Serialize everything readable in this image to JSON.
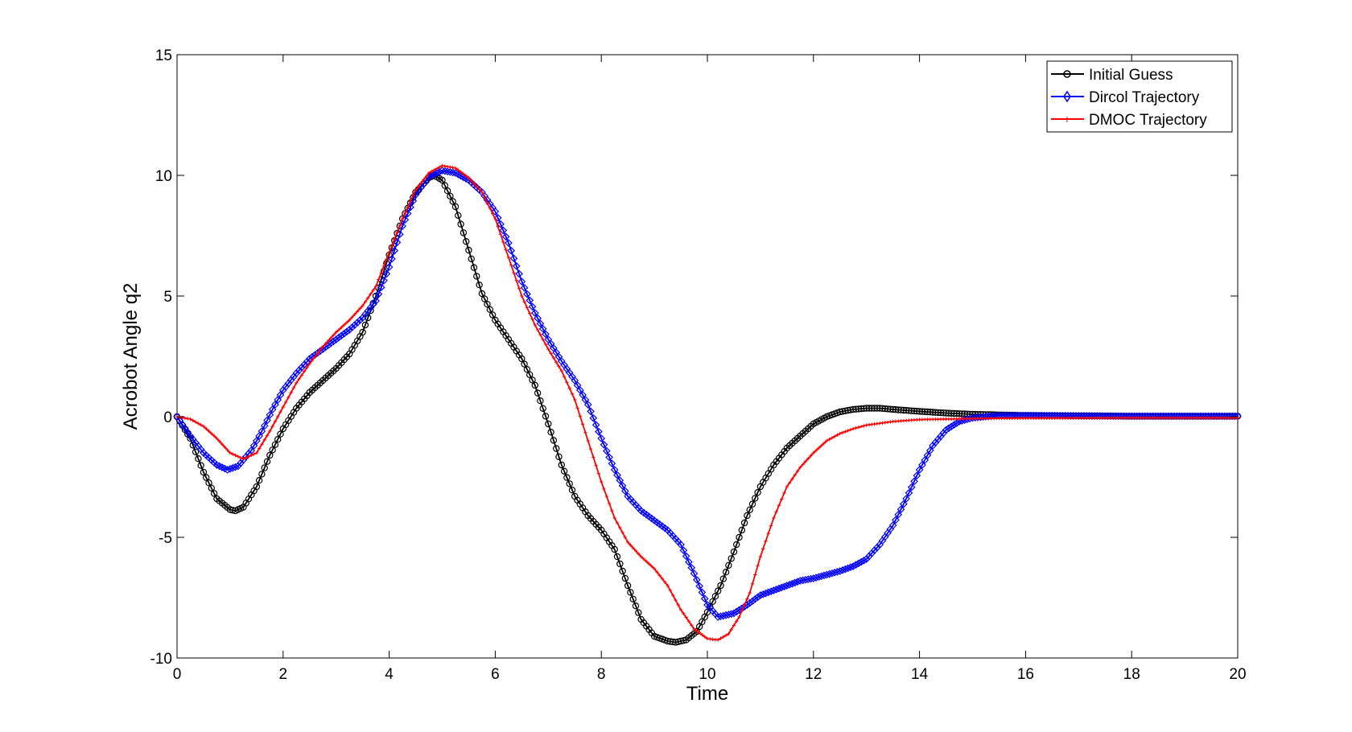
{
  "chart_data": {
    "type": "line",
    "title": "",
    "xlabel": "Time",
    "ylabel": "Acrobot Angle q2",
    "xlim": [
      0,
      20
    ],
    "ylim": [
      -10,
      15
    ],
    "xticks": [
      0,
      2,
      4,
      6,
      8,
      10,
      12,
      14,
      16,
      18,
      20
    ],
    "yticks": [
      -10,
      -5,
      0,
      5,
      10,
      15
    ],
    "grid": false,
    "legend_position": "top-right",
    "series": [
      {
        "name": "Initial Guess",
        "color": "#000000",
        "marker": "circle",
        "points": [
          [
            0,
            0
          ],
          [
            0.25,
            -0.9
          ],
          [
            0.5,
            -2.3
          ],
          [
            0.75,
            -3.4
          ],
          [
            1.0,
            -3.85
          ],
          [
            1.1,
            -3.9
          ],
          [
            1.25,
            -3.75
          ],
          [
            1.5,
            -2.9
          ],
          [
            1.75,
            -1.6
          ],
          [
            2.0,
            -0.5
          ],
          [
            2.25,
            0.35
          ],
          [
            2.5,
            1.0
          ],
          [
            2.75,
            1.5
          ],
          [
            3.0,
            2.0
          ],
          [
            3.25,
            2.6
          ],
          [
            3.5,
            3.5
          ],
          [
            3.75,
            5.0
          ],
          [
            4.0,
            6.7
          ],
          [
            4.25,
            8.2
          ],
          [
            4.5,
            9.3
          ],
          [
            4.75,
            9.9
          ],
          [
            4.85,
            10.0
          ],
          [
            5.0,
            9.8
          ],
          [
            5.25,
            8.7
          ],
          [
            5.5,
            6.9
          ],
          [
            5.75,
            5.1
          ],
          [
            6.0,
            4.0
          ],
          [
            6.25,
            3.2
          ],
          [
            6.5,
            2.4
          ],
          [
            6.75,
            1.3
          ],
          [
            7.0,
            -0.3
          ],
          [
            7.25,
            -2.0
          ],
          [
            7.5,
            -3.3
          ],
          [
            7.75,
            -4.1
          ],
          [
            8.0,
            -4.7
          ],
          [
            8.25,
            -5.5
          ],
          [
            8.5,
            -7.0
          ],
          [
            8.75,
            -8.4
          ],
          [
            9.0,
            -9.1
          ],
          [
            9.25,
            -9.3
          ],
          [
            9.4,
            -9.35
          ],
          [
            9.6,
            -9.25
          ],
          [
            9.8,
            -8.9
          ],
          [
            10.0,
            -8.1
          ],
          [
            10.25,
            -7.0
          ],
          [
            10.5,
            -5.6
          ],
          [
            10.75,
            -4.1
          ],
          [
            11.0,
            -2.9
          ],
          [
            11.25,
            -2.0
          ],
          [
            11.5,
            -1.3
          ],
          [
            11.75,
            -0.8
          ],
          [
            12.0,
            -0.3
          ],
          [
            12.25,
            0.0
          ],
          [
            12.5,
            0.2
          ],
          [
            12.75,
            0.3
          ],
          [
            13.0,
            0.35
          ],
          [
            13.25,
            0.35
          ],
          [
            13.5,
            0.3
          ],
          [
            14.0,
            0.22
          ],
          [
            14.5,
            0.15
          ],
          [
            15.0,
            0.1
          ],
          [
            16.0,
            0.05
          ],
          [
            18.0,
            0.02
          ],
          [
            20.0,
            0.02
          ]
        ]
      },
      {
        "name": "Dircol Trajectory",
        "color": "#0000ff",
        "marker": "diamond",
        "points": [
          [
            0,
            0
          ],
          [
            0.25,
            -0.8
          ],
          [
            0.5,
            -1.5
          ],
          [
            0.75,
            -2.0
          ],
          [
            0.95,
            -2.2
          ],
          [
            1.15,
            -2.05
          ],
          [
            1.4,
            -1.4
          ],
          [
            1.6,
            -0.6
          ],
          [
            1.8,
            0.3
          ],
          [
            2.0,
            1.1
          ],
          [
            2.25,
            1.8
          ],
          [
            2.5,
            2.4
          ],
          [
            2.75,
            2.8
          ],
          [
            3.0,
            3.2
          ],
          [
            3.25,
            3.6
          ],
          [
            3.5,
            4.1
          ],
          [
            3.75,
            4.8
          ],
          [
            4.0,
            6.2
          ],
          [
            4.25,
            7.9
          ],
          [
            4.5,
            9.2
          ],
          [
            4.75,
            9.95
          ],
          [
            5.0,
            10.2
          ],
          [
            5.25,
            10.1
          ],
          [
            5.5,
            9.8
          ],
          [
            5.75,
            9.3
          ],
          [
            6.0,
            8.5
          ],
          [
            6.25,
            7.2
          ],
          [
            6.5,
            5.6
          ],
          [
            6.75,
            4.3
          ],
          [
            7.0,
            3.2
          ],
          [
            7.25,
            2.3
          ],
          [
            7.5,
            1.5
          ],
          [
            7.75,
            0.5
          ],
          [
            8.0,
            -0.9
          ],
          [
            8.25,
            -2.2
          ],
          [
            8.5,
            -3.3
          ],
          [
            8.75,
            -3.9
          ],
          [
            9.0,
            -4.3
          ],
          [
            9.25,
            -4.7
          ],
          [
            9.5,
            -5.3
          ],
          [
            9.75,
            -6.5
          ],
          [
            10.0,
            -7.8
          ],
          [
            10.2,
            -8.3
          ],
          [
            10.5,
            -8.15
          ],
          [
            10.75,
            -7.8
          ],
          [
            11.0,
            -7.4
          ],
          [
            11.25,
            -7.2
          ],
          [
            11.5,
            -7.0
          ],
          [
            11.75,
            -6.8
          ],
          [
            12.0,
            -6.7
          ],
          [
            12.25,
            -6.55
          ],
          [
            12.5,
            -6.4
          ],
          [
            12.75,
            -6.2
          ],
          [
            13.0,
            -5.9
          ],
          [
            13.25,
            -5.3
          ],
          [
            13.5,
            -4.5
          ],
          [
            13.75,
            -3.4
          ],
          [
            14.0,
            -2.2
          ],
          [
            14.25,
            -1.2
          ],
          [
            14.5,
            -0.55
          ],
          [
            14.75,
            -0.2
          ],
          [
            15.0,
            -0.05
          ],
          [
            15.5,
            0.05
          ],
          [
            16.0,
            0.05
          ],
          [
            18.0,
            0.02
          ],
          [
            20.0,
            0.02
          ]
        ]
      },
      {
        "name": "DMOC Trajectory",
        "color": "#ff0000",
        "marker": "plus",
        "points": [
          [
            0,
            0
          ],
          [
            0.25,
            -0.1
          ],
          [
            0.5,
            -0.4
          ],
          [
            0.75,
            -0.9
          ],
          [
            1.0,
            -1.5
          ],
          [
            1.25,
            -1.75
          ],
          [
            1.5,
            -1.5
          ],
          [
            1.75,
            -0.6
          ],
          [
            2.0,
            0.4
          ],
          [
            2.25,
            1.4
          ],
          [
            2.5,
            2.2
          ],
          [
            2.75,
            2.9
          ],
          [
            3.0,
            3.5
          ],
          [
            3.25,
            4.0
          ],
          [
            3.5,
            4.6
          ],
          [
            3.75,
            5.4
          ],
          [
            4.0,
            6.8
          ],
          [
            4.25,
            8.2
          ],
          [
            4.5,
            9.4
          ],
          [
            4.75,
            10.1
          ],
          [
            5.0,
            10.4
          ],
          [
            5.25,
            10.3
          ],
          [
            5.5,
            9.9
          ],
          [
            5.75,
            9.3
          ],
          [
            6.0,
            8.2
          ],
          [
            6.25,
            6.6
          ],
          [
            6.5,
            5.0
          ],
          [
            6.75,
            3.8
          ],
          [
            7.0,
            2.8
          ],
          [
            7.25,
            1.9
          ],
          [
            7.5,
            0.7
          ],
          [
            7.75,
            -1.0
          ],
          [
            8.0,
            -2.7
          ],
          [
            8.25,
            -4.2
          ],
          [
            8.5,
            -5.2
          ],
          [
            8.75,
            -5.8
          ],
          [
            9.0,
            -6.3
          ],
          [
            9.25,
            -7.0
          ],
          [
            9.5,
            -8.0
          ],
          [
            9.75,
            -8.8
          ],
          [
            10.0,
            -9.2
          ],
          [
            10.2,
            -9.25
          ],
          [
            10.4,
            -9.0
          ],
          [
            10.6,
            -8.3
          ],
          [
            10.8,
            -7.3
          ],
          [
            11.0,
            -5.8
          ],
          [
            11.25,
            -4.2
          ],
          [
            11.5,
            -2.9
          ],
          [
            11.75,
            -2.1
          ],
          [
            12.0,
            -1.5
          ],
          [
            12.25,
            -1.0
          ],
          [
            12.5,
            -0.7
          ],
          [
            12.75,
            -0.5
          ],
          [
            13.0,
            -0.35
          ],
          [
            13.5,
            -0.2
          ],
          [
            14.0,
            -0.12
          ],
          [
            15.0,
            -0.08
          ],
          [
            16.0,
            -0.06
          ],
          [
            18.0,
            -0.05
          ],
          [
            20.0,
            -0.05
          ]
        ]
      }
    ]
  }
}
